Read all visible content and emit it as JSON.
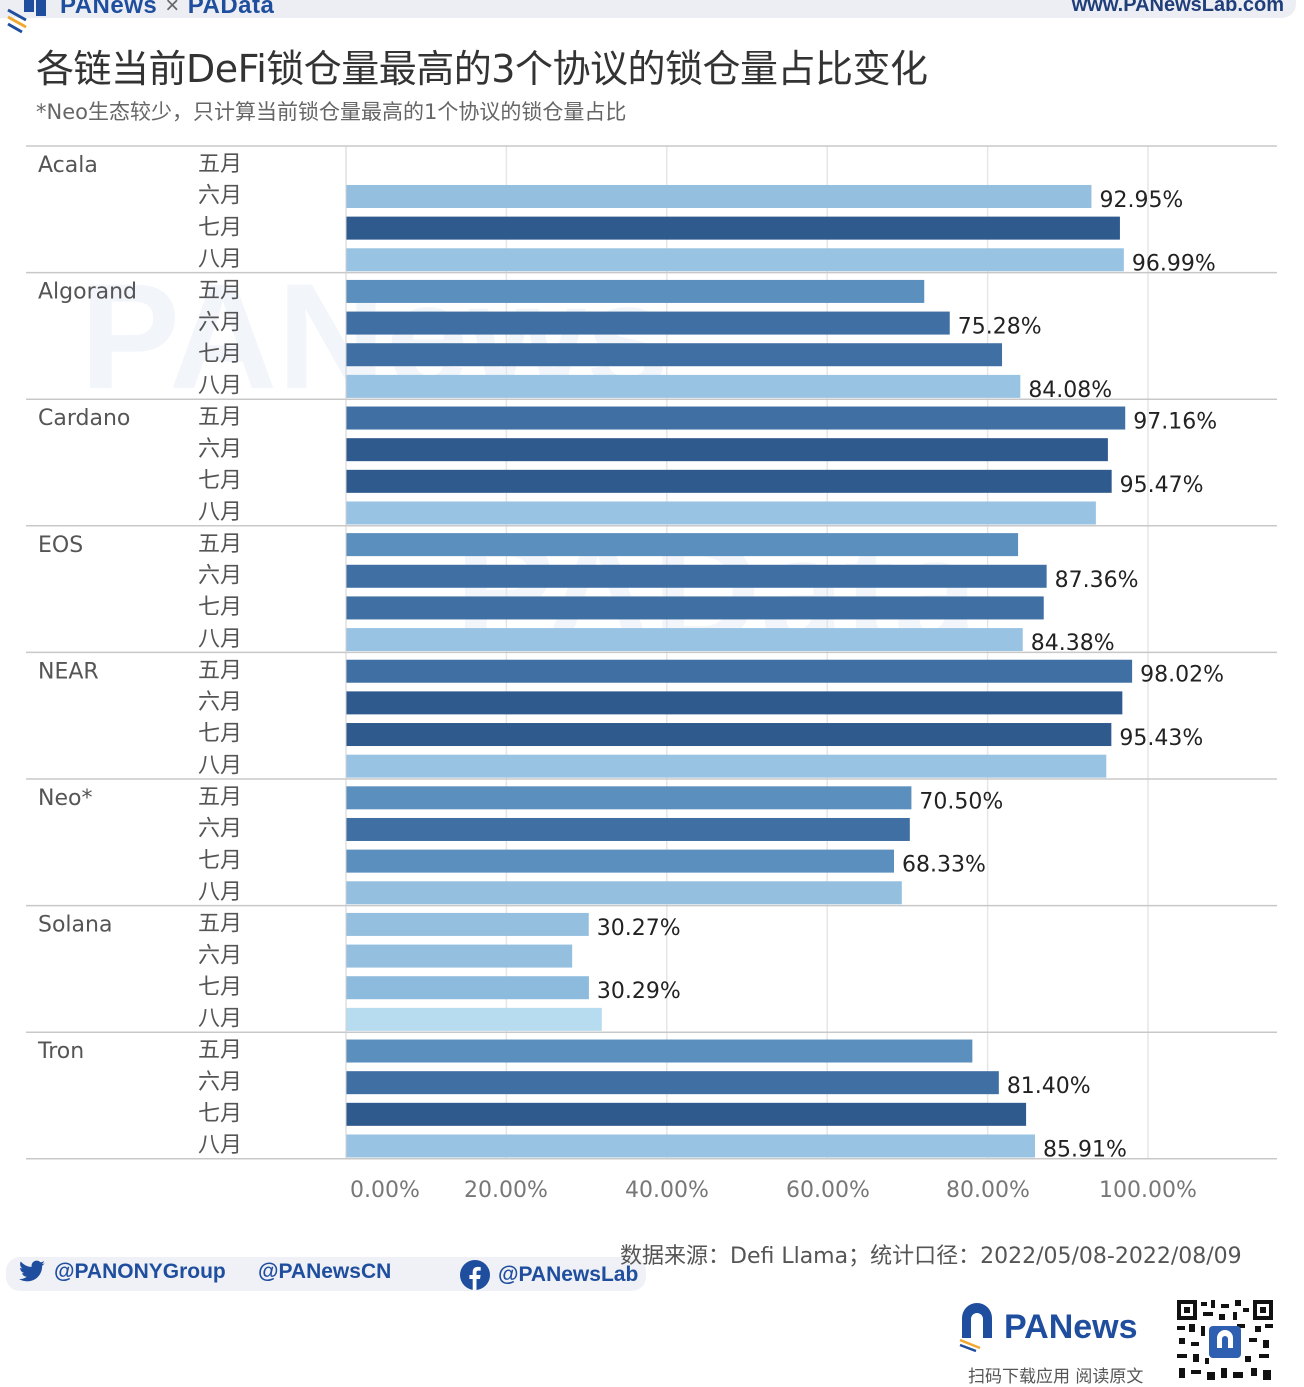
{
  "header": {
    "brand_left": "PANews",
    "brand_sep": "×",
    "brand_right": "PAData",
    "site": "www.PANewsLab.com"
  },
  "title": "各链当前DeFi锁仓量最高的3个协议的锁仓量占比变化",
  "subtitle": "*Neo生态较少，只计算当前锁仓量最高的1个协议的锁仓量占比",
  "watermarks": [
    "PANews",
    "PAData"
  ],
  "footer": {
    "twitter_handle": "@PANONYGroup",
    "weibo_handle": "@PANewsCN",
    "facebook_handle": "@PANewsLab",
    "source": "数据来源：Defi Llama；统计口径：2022/05/08-2022/08/09",
    "logo_text": "PANews",
    "scan_text": "扫码下载应用  阅读原文"
  },
  "colors": {
    "may": "#5b8fbe",
    "jun": "#3f6fa3",
    "jul": "#2f5a8d",
    "aug": "#99c3e3",
    "light": "#9cc6e4",
    "brand": "#1f4e9e"
  },
  "chart_data": {
    "type": "bar",
    "orientation": "horizontal",
    "title": "各链当前DeFi锁仓量最高的3个协议的锁仓量占比变化",
    "subtitle": "*Neo生态较少，只计算当前锁仓量最高的1个协议的锁仓量占比",
    "xlabel": "",
    "ylabel": "",
    "xlim": [
      0,
      100
    ],
    "x_ticks": [
      "0.00%",
      "20.00%",
      "40.00%",
      "60.00%",
      "80.00%",
      "100.00%"
    ],
    "x_tick_values": [
      0,
      20,
      40,
      60,
      80,
      100
    ],
    "grid": true,
    "months": [
      "五月",
      "六月",
      "七月",
      "八月"
    ],
    "groups": [
      {
        "chain": "Acala",
        "values": [
          null,
          92.95,
          96.5,
          96.99
        ],
        "labels": [
          "",
          "92.95%",
          "",
          "96.99%"
        ],
        "tones": [
          "may",
          "light",
          "jul",
          "aug"
        ]
      },
      {
        "chain": "Algorand",
        "values": [
          72.1,
          75.28,
          81.8,
          84.08
        ],
        "labels": [
          "",
          "75.28%",
          "",
          "84.08%"
        ],
        "tones": [
          "may",
          "jun",
          "jun",
          "aug"
        ]
      },
      {
        "chain": "Cardano",
        "values": [
          97.16,
          95.0,
          95.47,
          93.5
        ],
        "labels": [
          "97.16%",
          "",
          "95.47%",
          ""
        ],
        "tones": [
          "jun",
          "jul",
          "jul",
          "aug"
        ]
      },
      {
        "chain": "EOS",
        "values": [
          83.8,
          87.36,
          87.0,
          84.38
        ],
        "labels": [
          "",
          "87.36%",
          "",
          "84.38%"
        ],
        "tones": [
          "may",
          "jun",
          "jun",
          "aug"
        ]
      },
      {
        "chain": "NEAR",
        "values": [
          98.02,
          96.8,
          95.43,
          94.8
        ],
        "labels": [
          "98.02%",
          "",
          "95.43%",
          ""
        ],
        "tones": [
          "jun",
          "jul",
          "jul",
          "aug"
        ]
      },
      {
        "chain": "Neo*",
        "values": [
          70.5,
          70.3,
          68.33,
          69.3
        ],
        "labels": [
          "70.50%",
          "",
          "68.33%",
          ""
        ],
        "tones": [
          "may",
          "jun",
          "may",
          "light"
        ]
      },
      {
        "chain": "Solana",
        "values": [
          30.27,
          28.2,
          30.29,
          31.9
        ],
        "labels": [
          "30.27%",
          "",
          "30.29%",
          ""
        ],
        "tones": [
          "light",
          "light",
          "lightmid",
          "palest"
        ]
      },
      {
        "chain": "Tron",
        "values": [
          78.1,
          81.4,
          84.8,
          85.91
        ],
        "labels": [
          "",
          "81.40%",
          "",
          "85.91%"
        ],
        "tones": [
          "may",
          "jun",
          "jul",
          "aug"
        ]
      }
    ]
  }
}
